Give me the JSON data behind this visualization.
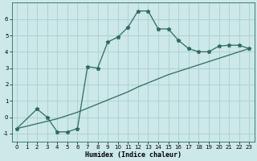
{
  "line1_x": [
    0,
    2,
    3,
    4,
    5,
    6,
    7,
    8,
    9,
    10,
    11,
    12,
    13,
    14,
    15,
    16,
    17,
    18,
    19,
    20,
    21,
    22,
    23
  ],
  "line1_y": [
    -0.7,
    0.5,
    0.0,
    -0.9,
    -0.9,
    -0.7,
    3.1,
    3.0,
    4.6,
    4.9,
    5.5,
    6.5,
    6.5,
    5.4,
    5.4,
    4.7,
    4.2,
    4.0,
    4.0,
    4.35,
    4.4,
    4.4,
    4.2
  ],
  "line2_x": [
    0,
    1,
    2,
    3,
    4,
    5,
    6,
    7,
    8,
    9,
    10,
    11,
    12,
    13,
    14,
    15,
    16,
    17,
    18,
    19,
    20,
    21,
    22,
    23
  ],
  "line2_y": [
    -0.7,
    -0.55,
    -0.4,
    -0.25,
    -0.1,
    0.1,
    0.3,
    0.55,
    0.8,
    1.05,
    1.3,
    1.55,
    1.85,
    2.1,
    2.35,
    2.6,
    2.8,
    3.0,
    3.2,
    3.4,
    3.6,
    3.8,
    4.0,
    4.2
  ],
  "xlabel": "Humidex (Indice chaleur)",
  "ylim": [
    -1.5,
    7.0
  ],
  "xlim": [
    -0.5,
    23.5
  ],
  "yticks": [
    -1,
    0,
    1,
    2,
    3,
    4,
    5,
    6
  ],
  "xticks": [
    0,
    1,
    2,
    3,
    4,
    5,
    6,
    7,
    8,
    9,
    10,
    11,
    12,
    13,
    14,
    15,
    16,
    17,
    18,
    19,
    20,
    21,
    22,
    23
  ],
  "line_color": "#2e6b5e",
  "bg_color": "#cce8e8",
  "grid_color": "#aacece",
  "marker": "*",
  "marker_size": 3.5,
  "linewidth": 0.9,
  "xlabel_fontsize": 6.0,
  "tick_fontsize": 5.0
}
